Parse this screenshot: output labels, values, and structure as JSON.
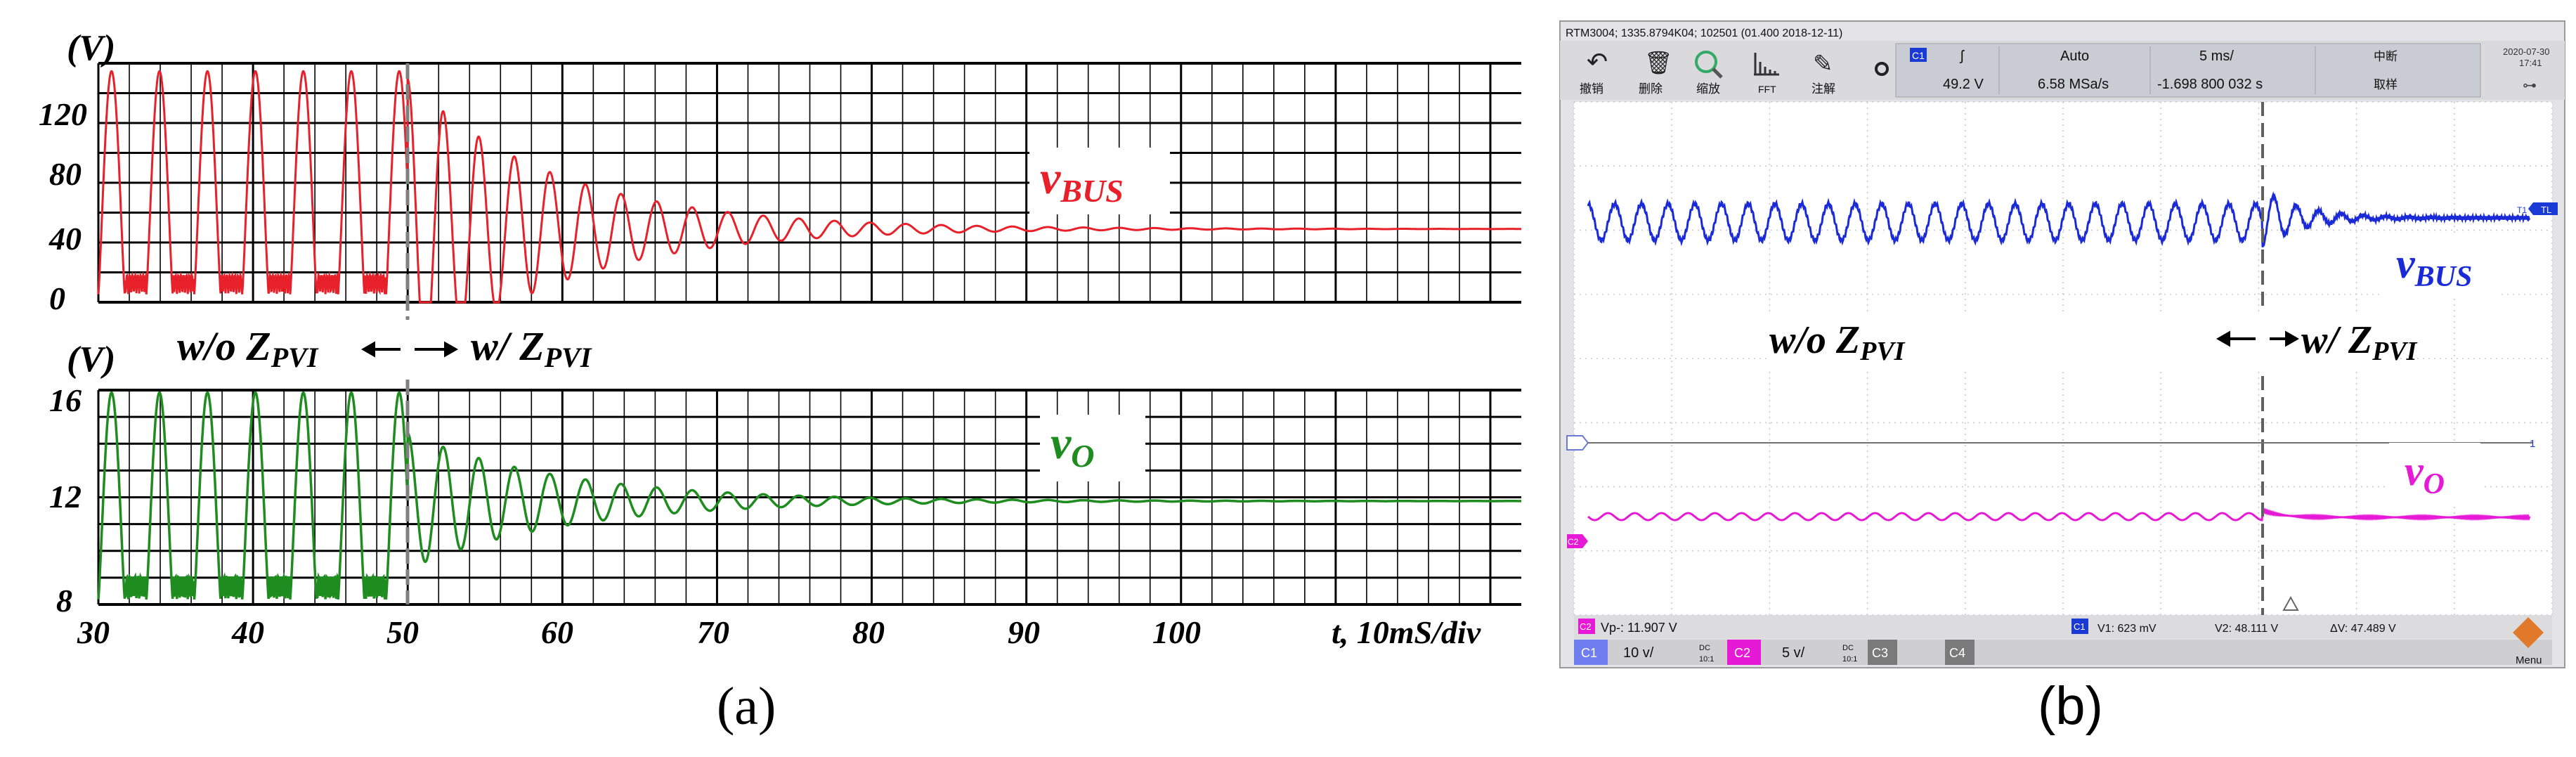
{
  "panel_a": {
    "caption": "(a)",
    "top": {
      "unit_label": "(V)",
      "y_ticks": [
        "120",
        "80",
        "40",
        "0"
      ],
      "signal_label_main": "v",
      "signal_label_sub": "BUS",
      "trace_color": "#e8202a"
    },
    "bottom": {
      "unit_label": "(V)",
      "y_ticks": [
        "16",
        "12",
        "8"
      ],
      "signal_label_main": "v",
      "signal_label_sub": "O",
      "trace_color": "#1e8c1e"
    },
    "x_ticks": [
      "30",
      "40",
      "50",
      "60",
      "70",
      "80",
      "90",
      "100"
    ],
    "x_axis_label": "t, 10mS/div",
    "annotation_left_main": "w/o Z",
    "annotation_left_sub": "PVI",
    "annotation_right_main": "w/ Z",
    "annotation_right_sub": "PVI"
  },
  "panel_b": {
    "caption": "(b)",
    "title_bar": "RTM3004; 1335.8794K04; 102501 (01.400 2018-12-11)",
    "toolbar": {
      "undo": "撤销",
      "delete": "删除",
      "zoom": "缩放",
      "fft": "FFT",
      "annotate": "注解",
      "channel_badge": "C1",
      "trigger_level": "49.2 V",
      "trigger_mode": "Auto",
      "sample_rate": "6.58 MSa/s",
      "timebase": "5 ms/",
      "time_offset": "-1.698 800 032 s",
      "interrupt": "中断",
      "acquire": "取样",
      "date": "2020-07-30",
      "time": "17:41"
    },
    "trace_labels": {
      "bus_main": "v",
      "bus_sub": "BUS",
      "o_main": "v",
      "o_sub": "O",
      "left_main": "w/o Z",
      "left_sub": "PVI",
      "right_main": "w/ Z",
      "right_sub": "PVI"
    },
    "markers": {
      "tl": "TL",
      "t1": "T1",
      "c2": "C2",
      "one": "1"
    },
    "measure_bar": {
      "vp_badge": "C2",
      "vp": "Vp-: 11.907 V",
      "c1_badge": "C1",
      "v1": "V1: 623 mV",
      "v2": "V2: 48.111 V",
      "dv": "ΔV: 47.489 V"
    },
    "channel_bar": {
      "c1": "C1",
      "c1_scale": "10 v/",
      "c1_coupling": "DC",
      "c1_ratio": "10:1",
      "c2": "C2",
      "c2_scale": "5 v/",
      "c2_coupling": "DC",
      "c2_ratio": "10:1",
      "c3": "C3",
      "c4": "C4",
      "menu": "Menu"
    },
    "colors": {
      "ch1": "#1a2ad6",
      "ch2": "#e61ad6",
      "screen": "#ffffff",
      "frame": "#d8d8d8"
    }
  },
  "chart_data": [
    {
      "type": "line",
      "title": "",
      "xlabel": "t, 10mS/div",
      "ylabel": "(V)",
      "xlim": [
        30,
        122
      ],
      "ylim": [
        0,
        150
      ],
      "y_ticks": [
        0,
        40,
        80,
        120
      ],
      "x_ticks": [
        30,
        40,
        50,
        60,
        70,
        80,
        90,
        100
      ],
      "grid": true,
      "series": [
        {
          "name": "vBUS",
          "description_free": true,
          "pre_compensation": {
            "x_start": 30,
            "x_end": 50,
            "peak": 145,
            "valley": 5,
            "period": 3.1
          },
          "post_compensation": {
            "x_start": 50,
            "settle_value": 46,
            "initial_peak": 140,
            "decay_time_constant": 9.5,
            "period": 2.3
          }
        }
      ],
      "events": [
        {
          "x": 50,
          "label": "w/o Z_PVI | w/ Z_PVI"
        }
      ]
    },
    {
      "type": "line",
      "title": "",
      "xlabel": "t, 10mS/div",
      "ylabel": "(V)",
      "xlim": [
        30,
        122
      ],
      "ylim": [
        8,
        16.5
      ],
      "y_ticks": [
        8,
        12,
        16
      ],
      "x_ticks": [
        30,
        40,
        50,
        60,
        70,
        80,
        90,
        100
      ],
      "grid": true,
      "series": [
        {
          "name": "vO",
          "pre_compensation": {
            "x_start": 30,
            "x_end": 50,
            "peak": 16.4,
            "valley": 8.2,
            "period": 3.1
          },
          "post_compensation": {
            "x_start": 50,
            "settle_value": 12.1,
            "initial_peak": 14.8,
            "decay_time_constant": 10,
            "period": 2.3
          }
        }
      ]
    }
  ]
}
